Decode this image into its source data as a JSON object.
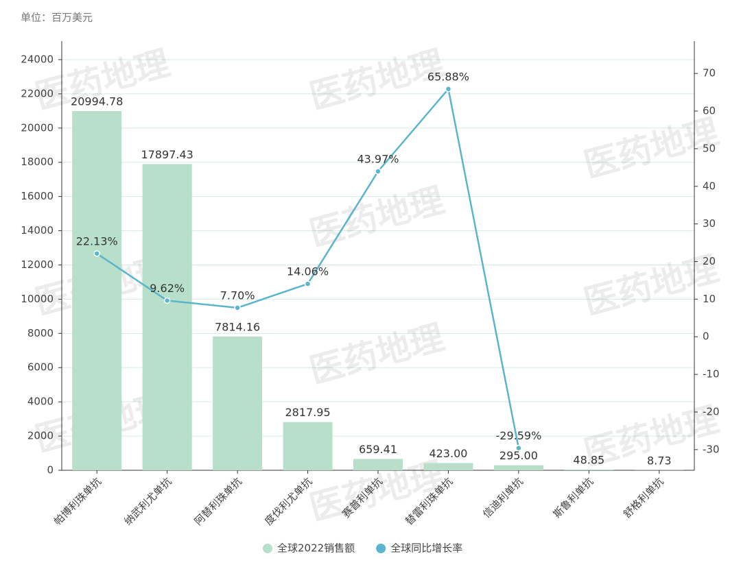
{
  "chart_data": {
    "type": "bar-line",
    "unit_note": "单位：百万美元",
    "watermark": "医药地理",
    "categories": [
      "帕博利珠单抗",
      "纳武利尤单抗",
      "阿替利珠单抗",
      "度伐利尤单抗",
      "赛普利单抗",
      "替雷利珠单抗",
      "信迪利单抗",
      "斯鲁利单抗",
      "舒格利单抗"
    ],
    "series": [
      {
        "name": "全球2022销售额",
        "type": "bar",
        "color": "#b7dfca",
        "values": [
          20994.78,
          17897.43,
          7814.16,
          2817.95,
          659.41,
          423.0,
          295.0,
          48.85,
          8.73
        ],
        "value_labels": [
          "20994.78",
          "17897.43",
          "7814.16",
          "2817.95",
          "659.41",
          "423.00",
          "295.00",
          "48.85",
          "8.73"
        ]
      },
      {
        "name": "全球同比增长率",
        "type": "line",
        "axis": "y2",
        "color": "#5ab4cc",
        "values": [
          22.13,
          9.62,
          7.7,
          14.06,
          43.97,
          65.88,
          -29.59,
          null,
          null
        ],
        "value_labels": [
          "22.13%",
          "9.62%",
          "7.70%",
          "14.06%",
          "43.97%",
          "65.88%",
          "-29.59%",
          null,
          null
        ]
      }
    ],
    "ylim": [
      0,
      25080
    ],
    "yticks": [
      0,
      2000,
      4000,
      6000,
      8000,
      10000,
      12000,
      14000,
      16000,
      18000,
      20000,
      22000,
      24000
    ],
    "y2lim": [
      -35.5,
      78.6
    ],
    "y2ticks": [
      -30,
      -20,
      -10,
      0,
      10,
      20,
      30,
      40,
      50,
      60,
      70
    ],
    "grid": true
  }
}
